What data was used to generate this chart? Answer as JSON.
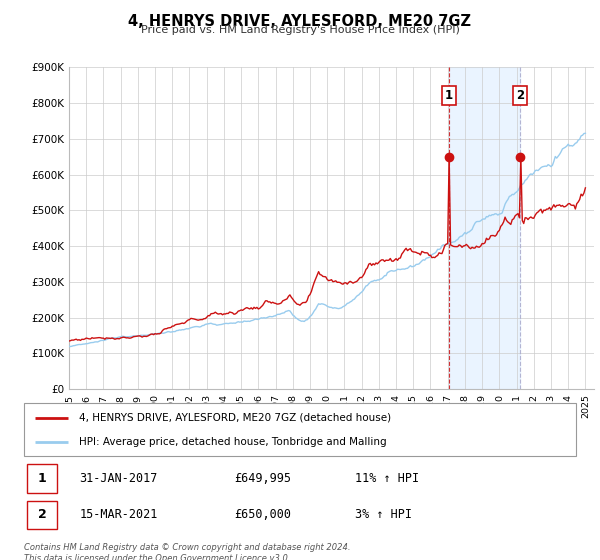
{
  "title": "4, HENRYS DRIVE, AYLESFORD, ME20 7GZ",
  "subtitle": "Price paid vs. HM Land Registry's House Price Index (HPI)",
  "ylim": [
    0,
    900000
  ],
  "xlim_start": 1995.0,
  "xlim_end": 2025.5,
  "line1_color": "#cc1111",
  "line2_color": "#99ccee",
  "line1_label": "4, HENRYS DRIVE, AYLESFORD, ME20 7GZ (detached house)",
  "line2_label": "HPI: Average price, detached house, Tonbridge and Malling",
  "sale1_year": 2017.08,
  "sale1_val": 649995,
  "sale2_year": 2021.21,
  "sale2_val": 650000,
  "footer": "Contains HM Land Registry data © Crown copyright and database right 2024.\nThis data is licensed under the Open Government Licence v3.0.",
  "background_color": "#ffffff",
  "grid_color": "#cccccc",
  "shaded_region_color": "#ddeeff",
  "yticks": [
    0,
    100000,
    200000,
    300000,
    400000,
    500000,
    600000,
    700000,
    800000,
    900000
  ],
  "ytick_labels": [
    "£0",
    "£100K",
    "£200K",
    "£300K",
    "£400K",
    "£500K",
    "£600K",
    "£700K",
    "£800K",
    "£900K"
  ]
}
